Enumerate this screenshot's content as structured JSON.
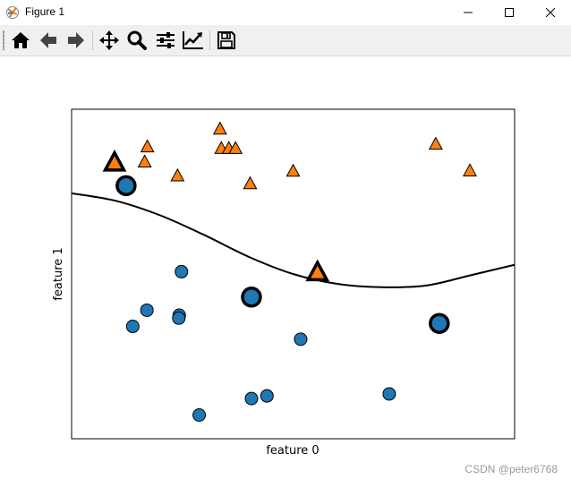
{
  "window": {
    "title": "Figure 1",
    "controls": [
      "minimize",
      "maximize",
      "close"
    ]
  },
  "toolbar": {
    "buttons": [
      {
        "name": "home",
        "icon": "home-icon"
      },
      {
        "name": "back",
        "icon": "arrow-left-icon"
      },
      {
        "name": "forward",
        "icon": "arrow-right-icon"
      },
      {
        "name": "pan",
        "icon": "move-icon"
      },
      {
        "name": "zoom",
        "icon": "zoom-icon"
      },
      {
        "name": "configure-subplots",
        "icon": "sliders-icon"
      },
      {
        "name": "edit-axis",
        "icon": "chart-line-icon"
      },
      {
        "name": "save",
        "icon": "save-icon"
      }
    ]
  },
  "watermark": "CSDN @peter6768",
  "chart_data": {
    "type": "scatter",
    "xlabel": "feature 0",
    "ylabel": "feature 1",
    "ticks_visible": false,
    "xlim": [
      0,
      10
    ],
    "ylim": [
      0,
      10
    ],
    "colors": {
      "class0": "#1f77b4",
      "class1": "#ff7f0e",
      "edge": "#000000",
      "line": "#000000"
    },
    "series": [
      {
        "marker": "circle",
        "points": [
          [
            1.23,
            7.68
          ],
          [
            2.48,
            5.07
          ],
          [
            1.7,
            3.9
          ],
          [
            2.43,
            3.75
          ],
          [
            2.42,
            3.66
          ],
          [
            1.38,
            3.41
          ],
          [
            5.17,
            3.02
          ],
          [
            4.06,
            1.22
          ],
          [
            4.41,
            1.3
          ],
          [
            7.17,
            1.36
          ],
          [
            2.88,
            0.72
          ]
        ]
      },
      {
        "marker": "triangle",
        "points": [
          [
            3.35,
            9.4
          ],
          [
            1.71,
            8.86
          ],
          [
            3.38,
            8.81
          ],
          [
            3.55,
            8.81
          ],
          [
            3.7,
            8.81
          ],
          [
            1.65,
            8.4
          ],
          [
            2.39,
            7.98
          ],
          [
            5.0,
            8.12
          ],
          [
            4.03,
            7.74
          ],
          [
            8.22,
            8.94
          ],
          [
            8.99,
            8.13
          ]
        ]
      }
    ],
    "support_vectors": [
      {
        "x": 0.97,
        "y": 8.38,
        "marker": "triangle"
      },
      {
        "x": 1.23,
        "y": 7.68,
        "marker": "circle"
      },
      {
        "x": 5.55,
        "y": 5.05,
        "marker": "triangle"
      },
      {
        "x": 4.06,
        "y": 4.3,
        "marker": "circle"
      },
      {
        "x": 8.3,
        "y": 3.5,
        "marker": "circle"
      }
    ],
    "decision_boundary": [
      [
        0.0,
        7.45
      ],
      [
        1.0,
        7.22
      ],
      [
        2.0,
        6.78
      ],
      [
        3.0,
        6.18
      ],
      [
        4.0,
        5.52
      ],
      [
        5.0,
        5.0
      ],
      [
        6.0,
        4.7
      ],
      [
        7.0,
        4.6
      ],
      [
        8.0,
        4.65
      ],
      [
        9.0,
        4.96
      ],
      [
        10.0,
        5.28
      ]
    ]
  }
}
